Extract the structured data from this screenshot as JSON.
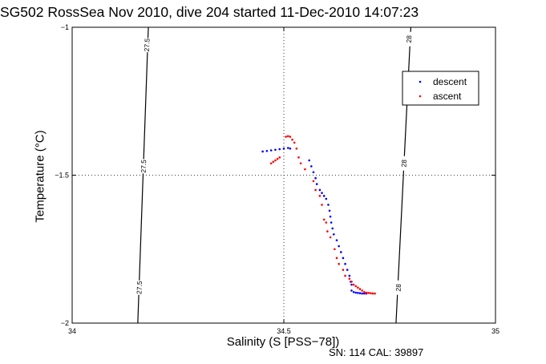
{
  "title": "SG502 RossSea Nov 2010, dive 204 started 11-Dec-2010 14:07:23",
  "footer": "SN: 114  CAL: 39897",
  "colors": {
    "descent": "#0000ff",
    "ascent": "#ff0000",
    "axis": "#000000",
    "grid": "#000000"
  },
  "chart_data": {
    "type": "scatter",
    "xlabel": "Salinity (S [PSS−78])",
    "ylabel": "Temperature (°C)",
    "xlim": [
      34,
      35
    ],
    "ylim": [
      -2,
      -1
    ],
    "xticks": [
      34,
      34.5,
      35
    ],
    "xtick_labels": [
      "34",
      "34.5",
      "35"
    ],
    "yticks": [
      -2,
      -1.5,
      -1
    ],
    "ytick_labels": [
      "−2",
      "−1.5",
      "−1"
    ],
    "grid": "dotted at major ticks",
    "legend_position": "top-right",
    "isopycnals": [
      {
        "label": "27.5",
        "points": [
          [
            34.18,
            -1.0
          ],
          [
            34.155,
            -2.0
          ]
        ],
        "label_positions": [
          [
            34.178,
            -1.06
          ],
          [
            34.17,
            -1.47
          ],
          [
            34.16,
            -1.88
          ]
        ]
      },
      {
        "label": "28",
        "points": [
          [
            34.8,
            -1.0
          ],
          [
            34.765,
            -2.0
          ]
        ],
        "label_positions": [
          [
            34.797,
            -1.04
          ],
          [
            34.785,
            -1.46
          ],
          [
            34.772,
            -1.88
          ]
        ]
      }
    ],
    "series": [
      {
        "name": "descent",
        "color": "#0000ff",
        "points": [
          [
            34.45,
            -1.42
          ],
          [
            34.46,
            -1.418
          ],
          [
            34.47,
            -1.416
          ],
          [
            34.48,
            -1.414
          ],
          [
            34.49,
            -1.412
          ],
          [
            34.5,
            -1.41
          ],
          [
            34.51,
            -1.408
          ],
          [
            34.515,
            -1.41
          ],
          [
            34.56,
            -1.45
          ],
          [
            34.565,
            -1.47
          ],
          [
            34.57,
            -1.49
          ],
          [
            34.575,
            -1.51
          ],
          [
            34.578,
            -1.53
          ],
          [
            34.585,
            -1.55
          ],
          [
            34.59,
            -1.56
          ],
          [
            34.595,
            -1.57
          ],
          [
            34.6,
            -1.58
          ],
          [
            34.605,
            -1.6
          ],
          [
            34.608,
            -1.62
          ],
          [
            34.61,
            -1.64
          ],
          [
            34.612,
            -1.66
          ],
          [
            34.615,
            -1.68
          ],
          [
            34.618,
            -1.7
          ],
          [
            34.625,
            -1.72
          ],
          [
            34.63,
            -1.74
          ],
          [
            34.635,
            -1.76
          ],
          [
            34.64,
            -1.78
          ],
          [
            34.645,
            -1.8
          ],
          [
            34.65,
            -1.82
          ],
          [
            34.655,
            -1.84
          ],
          [
            34.658,
            -1.86
          ],
          [
            34.66,
            -1.87
          ],
          [
            34.66,
            -1.89
          ],
          [
            34.665,
            -1.895
          ],
          [
            34.67,
            -1.897
          ],
          [
            34.675,
            -1.898
          ],
          [
            34.68,
            -1.899
          ],
          [
            34.685,
            -1.9
          ],
          [
            34.69,
            -1.9
          ],
          [
            34.695,
            -1.9
          ]
        ]
      },
      {
        "name": "ascent",
        "color": "#ff0000",
        "points": [
          [
            34.47,
            -1.46
          ],
          [
            34.475,
            -1.455
          ],
          [
            34.48,
            -1.45
          ],
          [
            34.485,
            -1.445
          ],
          [
            34.49,
            -1.44
          ],
          [
            34.505,
            -1.37
          ],
          [
            34.51,
            -1.368
          ],
          [
            34.515,
            -1.37
          ],
          [
            34.52,
            -1.38
          ],
          [
            34.525,
            -1.39
          ],
          [
            34.53,
            -1.41
          ],
          [
            34.535,
            -1.44
          ],
          [
            34.54,
            -1.46
          ],
          [
            34.55,
            -1.48
          ],
          [
            34.57,
            -1.52
          ],
          [
            34.575,
            -1.55
          ],
          [
            34.585,
            -1.57
          ],
          [
            34.59,
            -1.6
          ],
          [
            34.595,
            -1.65
          ],
          [
            34.6,
            -1.66
          ],
          [
            34.603,
            -1.69
          ],
          [
            34.61,
            -1.71
          ],
          [
            34.62,
            -1.75
          ],
          [
            34.625,
            -1.78
          ],
          [
            34.63,
            -1.8
          ],
          [
            34.64,
            -1.82
          ],
          [
            34.645,
            -1.84
          ],
          [
            34.655,
            -1.85
          ],
          [
            34.66,
            -1.86
          ],
          [
            34.665,
            -1.87
          ],
          [
            34.67,
            -1.875
          ],
          [
            34.675,
            -1.88
          ],
          [
            34.68,
            -1.885
          ],
          [
            34.685,
            -1.89
          ],
          [
            34.69,
            -1.895
          ],
          [
            34.695,
            -1.897
          ],
          [
            34.7,
            -1.898
          ],
          [
            34.705,
            -1.899
          ],
          [
            34.71,
            -1.9
          ],
          [
            34.715,
            -1.9
          ]
        ]
      }
    ]
  }
}
